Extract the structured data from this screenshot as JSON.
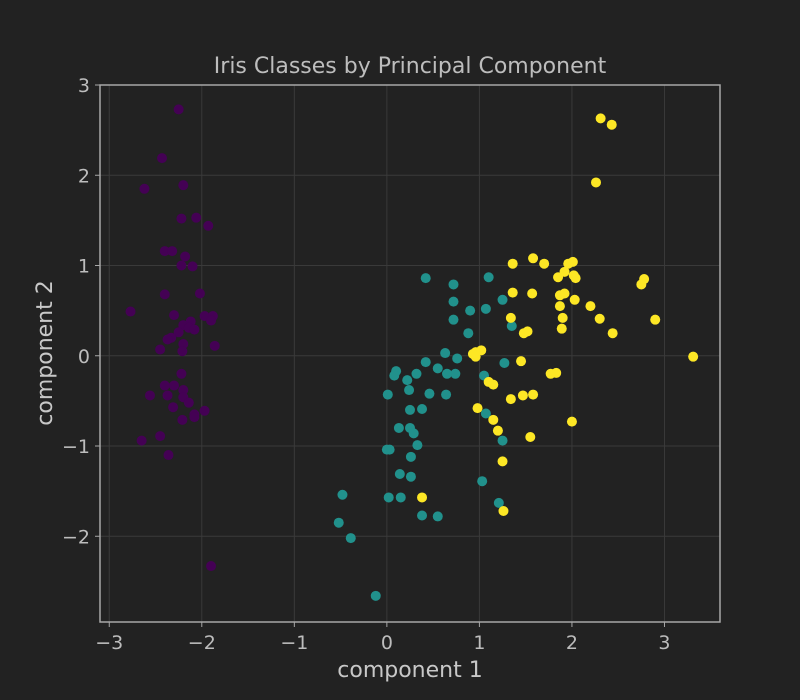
{
  "chart_data": {
    "type": "scatter",
    "title": "Iris Classes by Principal Component",
    "xlabel": "component 1",
    "ylabel": "component 2",
    "xlim": [
      -3.1,
      3.6
    ],
    "ylim": [
      -2.95,
      3.0
    ],
    "xticks": [
      -3,
      -2,
      -1,
      0,
      1,
      2,
      3
    ],
    "yticks": [
      -2,
      -1,
      0,
      1,
      2,
      3
    ],
    "grid": true,
    "colors": {
      "background": "#222222",
      "plot_background": "#222222",
      "grid": "#3a3a3a",
      "frame": "#a8a8a8",
      "text": "#bdbdbd"
    },
    "series": [
      {
        "color": "#440154",
        "points": [
          [
            -2.25,
            2.73
          ],
          [
            -2.43,
            2.19
          ],
          [
            -2.62,
            1.85
          ],
          [
            -2.2,
            1.89
          ],
          [
            -2.22,
            1.52
          ],
          [
            -2.06,
            1.53
          ],
          [
            -1.93,
            1.44
          ],
          [
            -2.4,
            1.16
          ],
          [
            -2.32,
            1.16
          ],
          [
            -2.18,
            1.1
          ],
          [
            -2.22,
            1.0
          ],
          [
            -2.1,
            0.99
          ],
          [
            -2.4,
            0.68
          ],
          [
            -2.02,
            0.69
          ],
          [
            -2.77,
            0.49
          ],
          [
            -2.3,
            0.45
          ],
          [
            -1.97,
            0.44
          ],
          [
            -1.88,
            0.44
          ],
          [
            -1.9,
            0.39
          ],
          [
            -2.12,
            0.38
          ],
          [
            -2.2,
            0.34
          ],
          [
            -2.14,
            0.31
          ],
          [
            -2.08,
            0.29
          ],
          [
            -2.25,
            0.26
          ],
          [
            -2.33,
            0.2
          ],
          [
            -2.2,
            0.13
          ],
          [
            -2.37,
            0.18
          ],
          [
            -1.86,
            0.11
          ],
          [
            -2.45,
            0.07
          ],
          [
            -2.21,
            0.05
          ],
          [
            -2.22,
            -0.2
          ],
          [
            -2.3,
            -0.33
          ],
          [
            -2.4,
            -0.33
          ],
          [
            -2.2,
            -0.38
          ],
          [
            -2.37,
            -0.44
          ],
          [
            -2.56,
            -0.44
          ],
          [
            -2.2,
            -0.46
          ],
          [
            -2.14,
            -0.52
          ],
          [
            -2.31,
            -0.57
          ],
          [
            -1.97,
            -0.61
          ],
          [
            -2.08,
            -0.65
          ],
          [
            -2.08,
            -0.68
          ],
          [
            -2.21,
            -0.71
          ],
          [
            -2.45,
            -0.89
          ],
          [
            -2.65,
            -0.94
          ],
          [
            -2.36,
            -1.1
          ],
          [
            -1.9,
            -2.33
          ]
        ]
      },
      {
        "color": "#21918c",
        "points": [
          [
            0.42,
            0.86
          ],
          [
            0.72,
            0.79
          ],
          [
            1.1,
            0.87
          ],
          [
            1.25,
            0.62
          ],
          [
            0.72,
            0.6
          ],
          [
            1.07,
            0.52
          ],
          [
            0.9,
            0.5
          ],
          [
            0.72,
            0.4
          ],
          [
            1.35,
            0.33
          ],
          [
            0.88,
            0.25
          ],
          [
            0.63,
            0.03
          ],
          [
            0.76,
            -0.03
          ],
          [
            0.42,
            -0.07
          ],
          [
            0.55,
            -0.14
          ],
          [
            0.74,
            -0.2
          ],
          [
            0.65,
            -0.2
          ],
          [
            0.32,
            -0.2
          ],
          [
            0.1,
            -0.17
          ],
          [
            0.08,
            -0.22
          ],
          [
            1.05,
            -0.22
          ],
          [
            0.22,
            -0.27
          ],
          [
            1.27,
            -0.08
          ],
          [
            0.24,
            -0.38
          ],
          [
            0.46,
            -0.42
          ],
          [
            0.64,
            -0.43
          ],
          [
            0.01,
            -0.43
          ],
          [
            0.25,
            -0.6
          ],
          [
            0.38,
            -0.59
          ],
          [
            1.07,
            -0.64
          ],
          [
            0.13,
            -0.8
          ],
          [
            0.25,
            -0.8
          ],
          [
            0.29,
            -0.86
          ],
          [
            0.33,
            -0.99
          ],
          [
            0.03,
            -1.04
          ],
          [
            0.0,
            -1.04
          ],
          [
            0.26,
            -1.12
          ],
          [
            1.25,
            -0.94
          ],
          [
            0.14,
            -1.31
          ],
          [
            0.26,
            -1.34
          ],
          [
            1.03,
            -1.39
          ],
          [
            -0.48,
            -1.54
          ],
          [
            0.02,
            -1.57
          ],
          [
            0.15,
            -1.57
          ],
          [
            1.21,
            -1.63
          ],
          [
            0.38,
            -1.77
          ],
          [
            0.55,
            -1.78
          ],
          [
            -0.52,
            -1.85
          ],
          [
            -0.39,
            -2.02
          ],
          [
            -0.12,
            -2.66
          ]
        ]
      },
      {
        "color": "#fde725",
        "points": [
          [
            2.31,
            2.63
          ],
          [
            2.43,
            2.56
          ],
          [
            2.26,
            1.92
          ],
          [
            1.58,
            1.08
          ],
          [
            1.36,
            1.02
          ],
          [
            1.7,
            1.02
          ],
          [
            1.96,
            1.02
          ],
          [
            2.01,
            1.04
          ],
          [
            1.92,
            0.93
          ],
          [
            2.02,
            0.89
          ],
          [
            2.04,
            0.86
          ],
          [
            1.85,
            0.87
          ],
          [
            2.78,
            0.85
          ],
          [
            2.75,
            0.79
          ],
          [
            1.36,
            0.7
          ],
          [
            1.57,
            0.69
          ],
          [
            1.92,
            0.69
          ],
          [
            1.87,
            0.67
          ],
          [
            2.03,
            0.62
          ],
          [
            2.2,
            0.55
          ],
          [
            1.87,
            0.55
          ],
          [
            2.3,
            0.41
          ],
          [
            2.9,
            0.4
          ],
          [
            1.34,
            0.42
          ],
          [
            1.9,
            0.42
          ],
          [
            1.89,
            0.3
          ],
          [
            1.52,
            0.27
          ],
          [
            1.48,
            0.25
          ],
          [
            2.44,
            0.25
          ],
          [
            0.96,
            0.04
          ],
          [
            0.93,
            0.02
          ],
          [
            1.02,
            0.06
          ],
          [
            0.96,
            -0.01
          ],
          [
            3.31,
            -0.01
          ],
          [
            1.45,
            -0.06
          ],
          [
            1.83,
            -0.19
          ],
          [
            1.77,
            -0.2
          ],
          [
            1.1,
            -0.29
          ],
          [
            1.15,
            -0.32
          ],
          [
            1.47,
            -0.44
          ],
          [
            1.58,
            -0.43
          ],
          [
            1.34,
            -0.48
          ],
          [
            0.98,
            -0.58
          ],
          [
            1.15,
            -0.71
          ],
          [
            2.0,
            -0.73
          ],
          [
            1.2,
            -0.83
          ],
          [
            1.55,
            -0.9
          ],
          [
            1.25,
            -1.17
          ],
          [
            0.38,
            -1.57
          ],
          [
            1.26,
            -1.72
          ]
        ]
      }
    ]
  }
}
